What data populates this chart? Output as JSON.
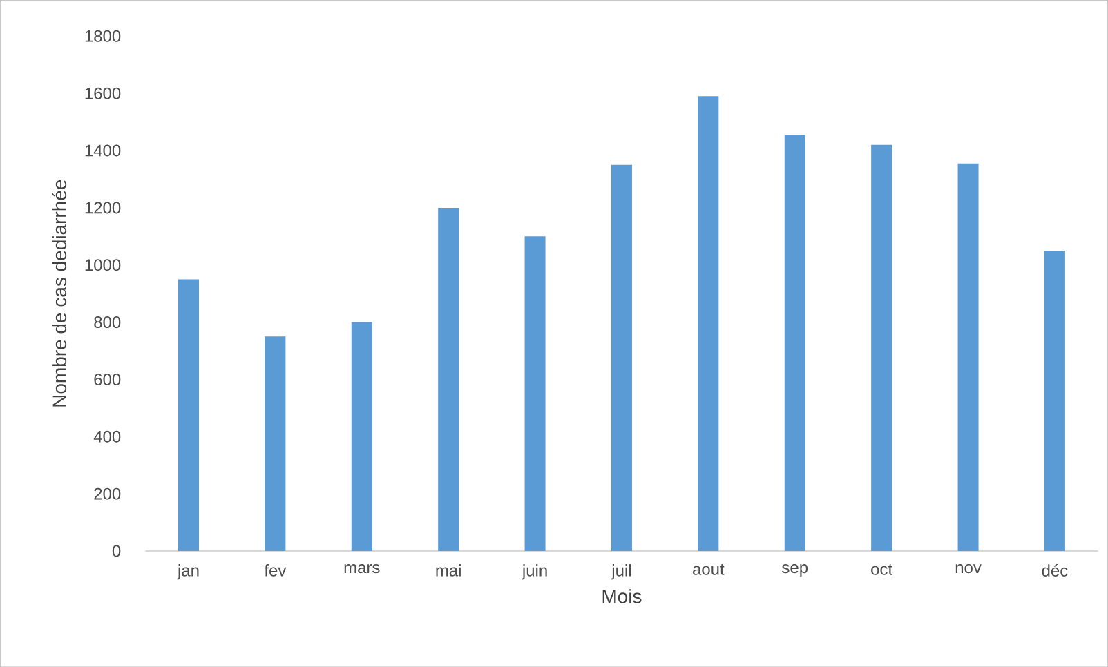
{
  "chart_data": {
    "type": "bar",
    "xlabel": "Mois",
    "ylabel": "Nombre de cas dediarrhée",
    "categories": [
      "jan",
      "fev",
      "mars",
      "mai",
      "juin",
      "juil",
      "aout",
      "sep",
      "oct",
      "nov",
      "déc"
    ],
    "values": [
      950,
      750,
      800,
      1200,
      1100,
      1350,
      1590,
      1455,
      1420,
      1355,
      1050
    ],
    "color": "#5b9bd5",
    "ylim": [
      0,
      1800
    ],
    "yticks": [
      0,
      200,
      400,
      600,
      800,
      1000,
      1200,
      1400,
      1600,
      1800
    ]
  }
}
